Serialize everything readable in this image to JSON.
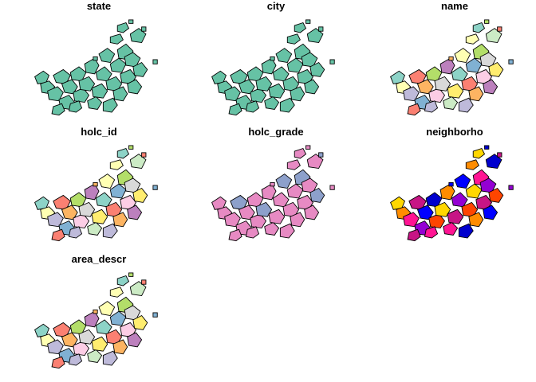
{
  "figure": {
    "panels": [
      {
        "id": "state",
        "title": "state",
        "scheme": "mono-green"
      },
      {
        "id": "city",
        "title": "city",
        "scheme": "mono-green"
      },
      {
        "id": "name",
        "title": "name",
        "scheme": "set3"
      },
      {
        "id": "holc_id",
        "title": "holc_id",
        "scheme": "set3"
      },
      {
        "id": "holc_grade",
        "title": "holc_grade",
        "scheme": "pink-blue"
      },
      {
        "id": "neighborho",
        "title": "neighborho",
        "scheme": "rainbow"
      },
      {
        "id": "area_descr",
        "title": "area_descr",
        "scheme": "set3"
      }
    ],
    "palettes": {
      "mono-green": [
        "#66c2a5"
      ],
      "set3": [
        "#8dd3c7",
        "#ffffb3",
        "#bebada",
        "#fb8072",
        "#80b1d3",
        "#fdb462",
        "#b3de69",
        "#fccde5",
        "#d9d9d9",
        "#bc80bd",
        "#ccebc5",
        "#ffed6f"
      ],
      "pink-blue": [
        "#e78ac3",
        "#e78ac3",
        "#e78ac3",
        "#8da0cb",
        "#e78ac3"
      ],
      "rainbow": [
        "#ffd700",
        "#ff8c00",
        "#ff1493",
        "#c71585",
        "#9400d3",
        "#0000ff",
        "#0000cd",
        "#ff4500"
      ]
    },
    "outline_color": "#000000"
  }
}
